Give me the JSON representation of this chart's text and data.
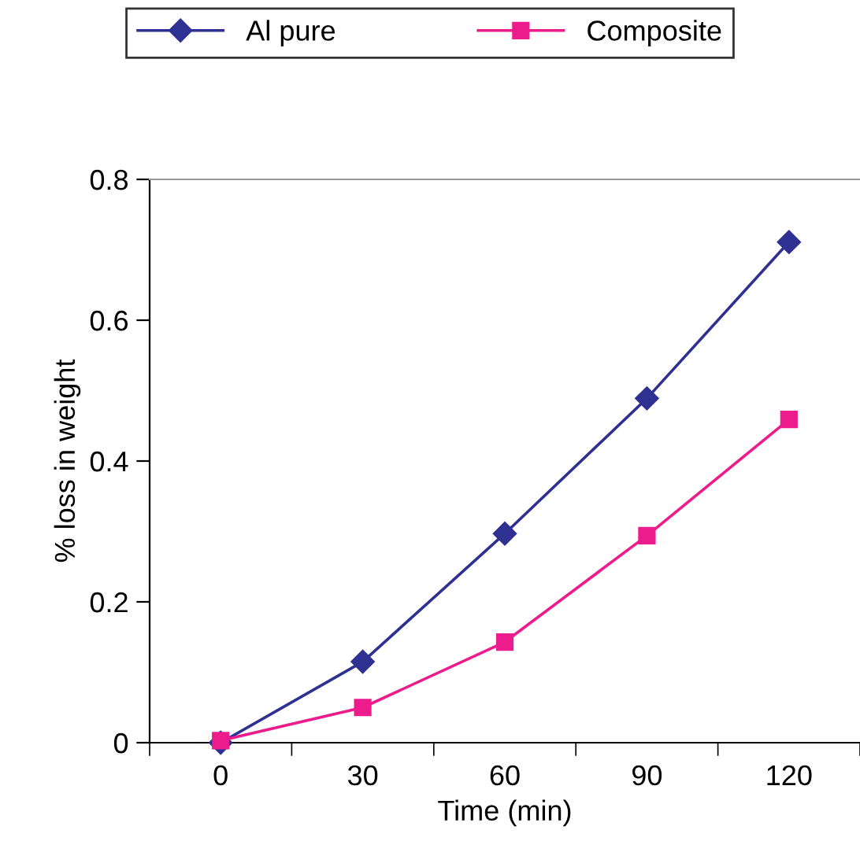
{
  "chart_data": {
    "type": "line",
    "xlabel": "Time (min)",
    "ylabel": "% loss in weight",
    "categories": [
      "0",
      "30",
      "60",
      "90",
      "120"
    ],
    "series": [
      {
        "name": "Al pure",
        "color": "#2e3192",
        "marker": "diamond",
        "values": [
          0,
          0.115,
          0.297,
          0.489,
          0.711
        ]
      },
      {
        "name": "Composite",
        "color": "#ec1c8c",
        "marker": "square",
        "values": [
          0.003,
          0.05,
          0.143,
          0.294,
          0.459
        ]
      }
    ],
    "ylim": [
      0,
      0.8
    ],
    "yticks": [
      0,
      0.2,
      0.4,
      0.6,
      0.8
    ],
    "grid": false,
    "legend": "top",
    "line_style": "solid"
  }
}
